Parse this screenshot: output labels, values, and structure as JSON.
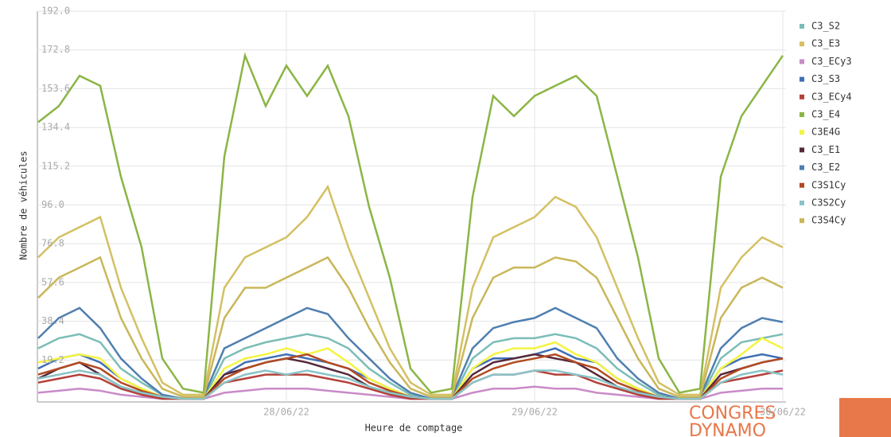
{
  "chart_data": {
    "type": "line",
    "y_label": "Nombre de véhicules",
    "x_label": "Heure de comptage",
    "categories": [
      null,
      null,
      null,
      null,
      null,
      null,
      null,
      null,
      null,
      null,
      null,
      null,
      "28/06/22",
      null,
      null,
      null,
      null,
      null,
      null,
      null,
      null,
      null,
      null,
      null,
      "29/06/22",
      null,
      null,
      null,
      null,
      null,
      null,
      null,
      null,
      null,
      null,
      null,
      "30/06/22"
    ],
    "ylim": [
      0,
      192
    ],
    "yticks": [
      {
        "value": 19.2,
        "label": "19.2"
      },
      {
        "value": 38.4,
        "label": "38.4"
      },
      {
        "value": 57.6,
        "label": "57.6"
      },
      {
        "value": 76.8,
        "label": "76.8"
      },
      {
        "value": 96,
        "label": "96.0"
      },
      {
        "value": 115.2,
        "label": "115.2"
      },
      {
        "value": 134.4,
        "label": "134.4"
      },
      {
        "value": 153.6,
        "label": "153.6"
      },
      {
        "value": 172.8,
        "label": "172.8"
      },
      {
        "value": 192,
        "label": "192.0"
      }
    ],
    "grid": true,
    "series": [
      {
        "name": "C3_S2",
        "color": "#7bbdb6",
        "values": [
          25,
          30,
          32,
          28,
          15,
          8,
          2,
          0,
          0,
          20,
          25,
          28,
          30,
          32,
          30,
          25,
          15,
          8,
          2,
          0,
          0,
          20,
          28,
          30,
          30,
          32,
          30,
          25,
          15,
          8,
          2,
          0,
          0,
          20,
          28,
          30,
          32
        ]
      },
      {
        "name": "C3_E3",
        "color": "#d4c064",
        "values": [
          70,
          80,
          85,
          90,
          55,
          30,
          8,
          2,
          2,
          55,
          70,
          75,
          80,
          90,
          105,
          75,
          50,
          25,
          8,
          2,
          2,
          55,
          80,
          85,
          90,
          100,
          95,
          80,
          55,
          30,
          8,
          2,
          2,
          55,
          70,
          80,
          75
        ]
      },
      {
        "name": "C3_ECy3",
        "color": "#c98bc8",
        "values": [
          3,
          4,
          5,
          4,
          2,
          1,
          0,
          0,
          0,
          3,
          4,
          5,
          5,
          5,
          4,
          3,
          2,
          1,
          0,
          0,
          0,
          3,
          5,
          5,
          6,
          5,
          5,
          3,
          2,
          1,
          0,
          0,
          0,
          3,
          4,
          5,
          5
        ]
      },
      {
        "name": "C3_S3",
        "color": "#3f6fb5",
        "values": [
          15,
          20,
          22,
          18,
          10,
          5,
          1,
          0,
          0,
          12,
          18,
          20,
          22,
          20,
          18,
          15,
          10,
          5,
          1,
          0,
          0,
          15,
          20,
          20,
          22,
          25,
          20,
          18,
          10,
          5,
          1,
          0,
          0,
          15,
          20,
          22,
          20
        ]
      },
      {
        "name": "C3_ECy4",
        "color": "#b5403a",
        "values": [
          8,
          10,
          12,
          10,
          5,
          2,
          0,
          0,
          0,
          8,
          10,
          12,
          12,
          12,
          10,
          8,
          5,
          2,
          0,
          0,
          0,
          8,
          12,
          12,
          14,
          12,
          12,
          8,
          5,
          2,
          0,
          0,
          0,
          8,
          10,
          12,
          14
        ]
      },
      {
        "name": "C3_E4",
        "color": "#8bb545",
        "values": [
          137,
          145,
          160,
          155,
          110,
          75,
          20,
          5,
          3,
          120,
          170,
          145,
          165,
          150,
          165,
          140,
          95,
          60,
          15,
          3,
          5,
          100,
          150,
          140,
          150,
          155,
          160,
          150,
          110,
          70,
          20,
          3,
          5,
          110,
          140,
          155,
          170
        ]
      },
      {
        "name": "C3E4G",
        "color": "#f4f442",
        "values": [
          18,
          20,
          22,
          20,
          10,
          5,
          1,
          0,
          0,
          15,
          20,
          22,
          25,
          22,
          25,
          18,
          10,
          5,
          1,
          0,
          0,
          15,
          22,
          25,
          25,
          28,
          22,
          18,
          10,
          5,
          1,
          0,
          0,
          15,
          22,
          30,
          25
        ]
      },
      {
        "name": "C3_E1",
        "color": "#55283a",
        "values": [
          10,
          15,
          18,
          12,
          6,
          3,
          1,
          0,
          0,
          12,
          15,
          18,
          20,
          18,
          15,
          12,
          6,
          3,
          1,
          0,
          0,
          12,
          18,
          20,
          22,
          20,
          18,
          12,
          6,
          3,
          1,
          0,
          0,
          12,
          15,
          18,
          20
        ]
      },
      {
        "name": "C3_E2",
        "color": "#4f7fb0",
        "values": [
          30,
          40,
          45,
          35,
          20,
          10,
          2,
          0,
          1,
          25,
          30,
          35,
          40,
          45,
          42,
          30,
          20,
          10,
          3,
          0,
          1,
          25,
          35,
          38,
          40,
          45,
          40,
          35,
          20,
          10,
          3,
          0,
          1,
          25,
          35,
          40,
          38
        ]
      },
      {
        "name": "C3S1Cy",
        "color": "#b24a22",
        "values": [
          12,
          15,
          18,
          15,
          8,
          4,
          1,
          0,
          0,
          10,
          15,
          18,
          20,
          22,
          18,
          15,
          8,
          4,
          1,
          0,
          0,
          10,
          15,
          18,
          20,
          22,
          18,
          15,
          8,
          4,
          1,
          0,
          0,
          10,
          15,
          18,
          20
        ]
      },
      {
        "name": "C3S2Cy",
        "color": "#8ac4c8",
        "values": [
          10,
          12,
          14,
          12,
          6,
          3,
          1,
          0,
          0,
          8,
          12,
          14,
          12,
          14,
          12,
          10,
          6,
          3,
          1,
          0,
          0,
          8,
          12,
          12,
          14,
          14,
          12,
          10,
          6,
          3,
          1,
          0,
          0,
          8,
          12,
          14,
          12
        ]
      },
      {
        "name": "C3S4Cy",
        "color": "#c9b75a",
        "values": [
          50,
          60,
          65,
          70,
          40,
          20,
          5,
          1,
          1,
          40,
          55,
          55,
          60,
          65,
          70,
          55,
          35,
          18,
          5,
          1,
          1,
          40,
          60,
          65,
          65,
          70,
          68,
          60,
          40,
          20,
          5,
          1,
          1,
          40,
          55,
          60,
          55
        ]
      }
    ]
  },
  "logo": {
    "line1": "CONGRES",
    "line2": "DYNAMO"
  }
}
